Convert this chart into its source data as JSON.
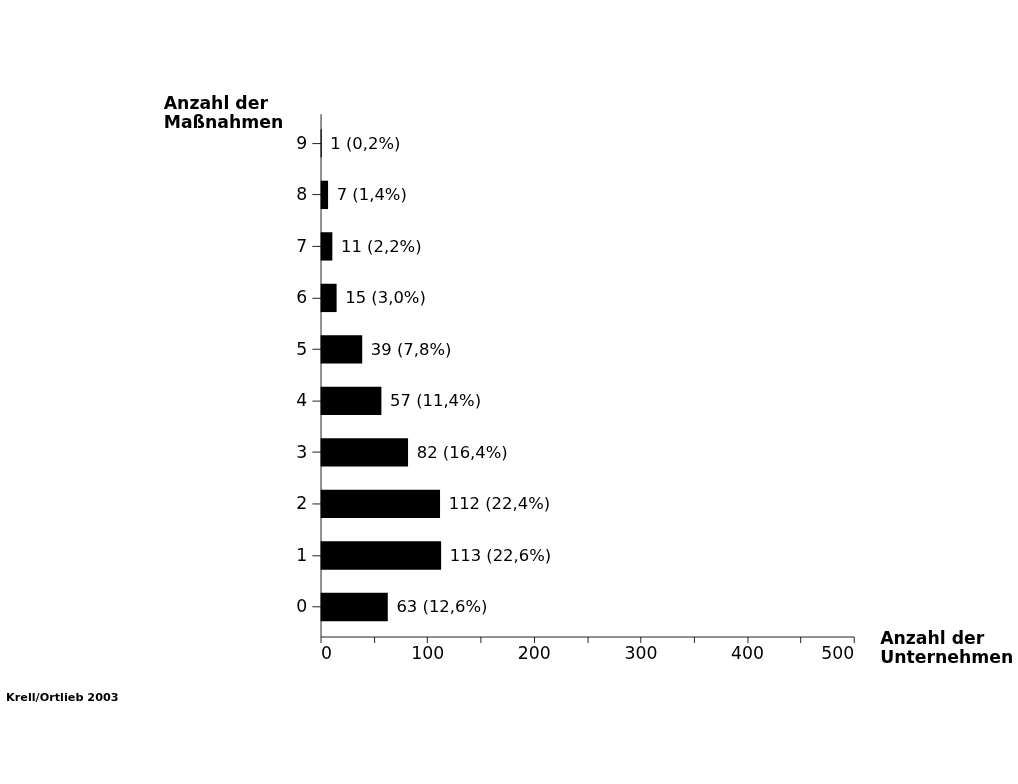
{
  "chart_data": {
    "type": "bar",
    "orientation": "horizontal",
    "categories": [
      "9",
      "8",
      "7",
      "6",
      "5",
      "4",
      "3",
      "2",
      "1",
      "0"
    ],
    "values": [
      1,
      7,
      11,
      15,
      39,
      57,
      82,
      112,
      113,
      63
    ],
    "color": "#000000",
    "value_labels": [
      "1 (0,2%)",
      "7 (1,4%)",
      "11 (2,2%)",
      "15 (3,0%)",
      "39 (7,8%)",
      "57 (11,4%)",
      "82 (16,4%)",
      "112 (22,4%)",
      "113 (22,6%)",
      "63 (12,6%)"
    ],
    "xlim": [
      0,
      500
    ],
    "xticks": [
      0,
      {
        "value": 50,
        "label": null
      },
      100,
      {
        "value": 150,
        "label": null
      },
      200,
      {
        "value": 250,
        "label": null
      },
      300,
      {
        "value": 350,
        "label": null
      },
      400,
      {
        "value": 450,
        "label": null
      },
      500
    ],
    "xlabel": "Anzahl der Unternehmen",
    "ylabel": "Anzahl der Maßnahmen",
    "annotations": [
      "Krell/Ortlieb 2003"
    ],
    "grid": false
  }
}
